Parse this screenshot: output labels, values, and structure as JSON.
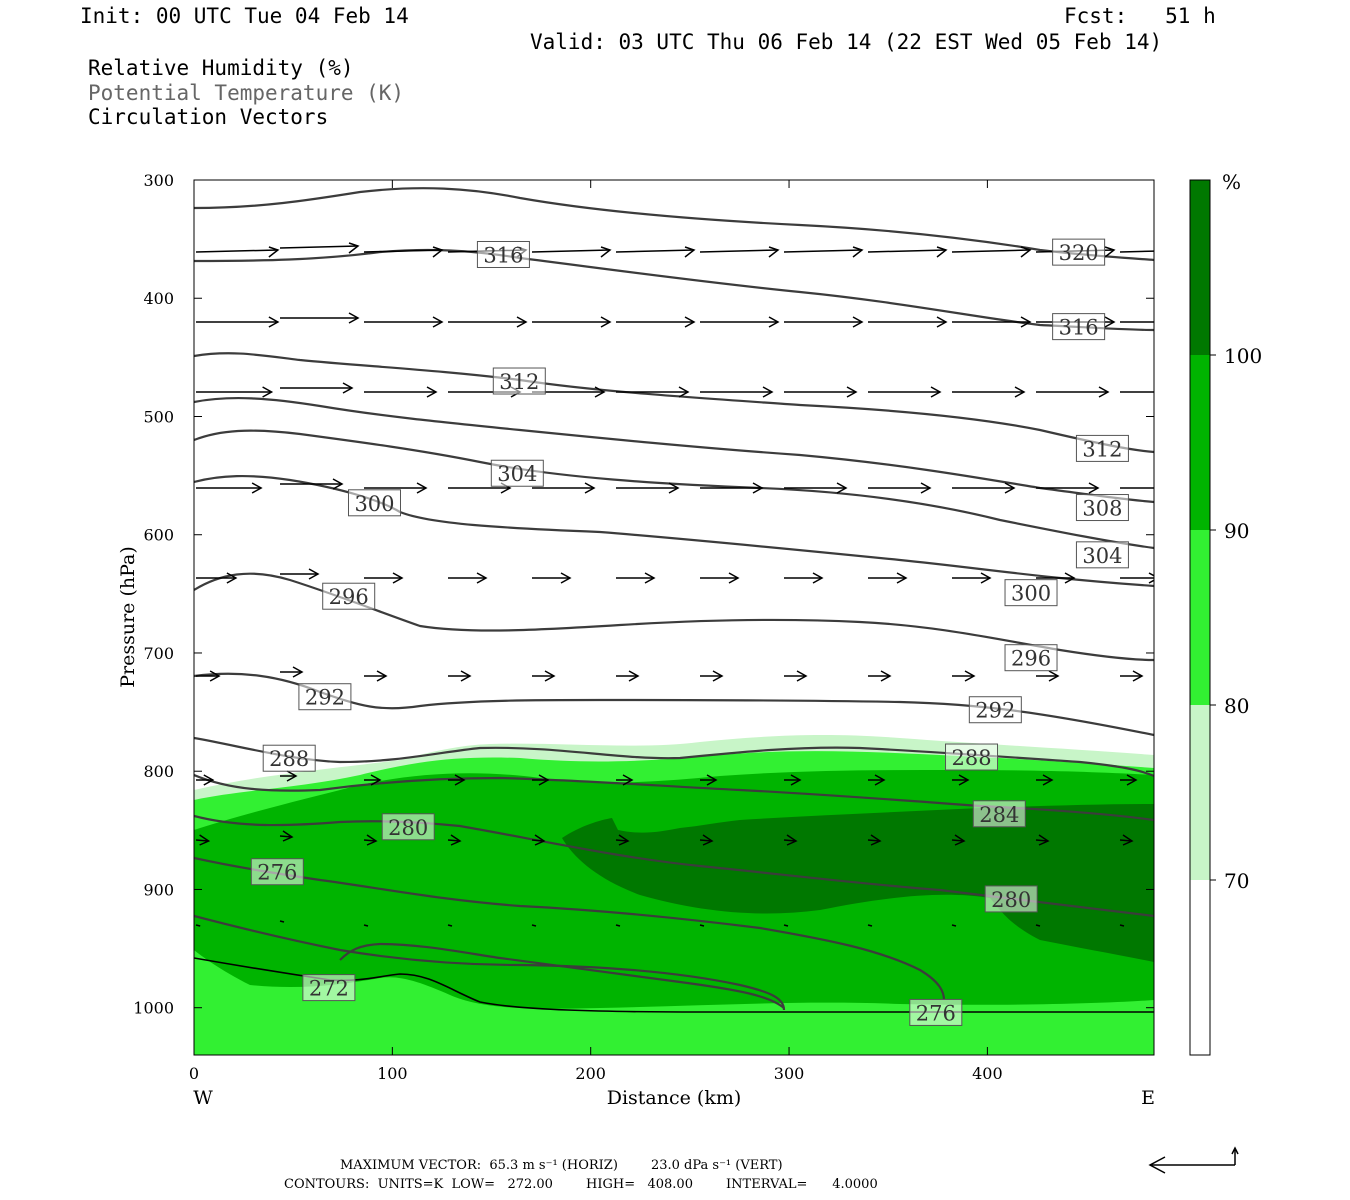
{
  "header": {
    "init": "Init: 00 UTC Tue 04 Feb 14",
    "fcst": "Fcst:   51 h",
    "valid": "Valid: 03 UTC Thu 06 Feb 14 (22 EST Wed 05 Feb 14)",
    "field_rh": "Relative Humidity (%)",
    "field_theta": "Potential Temperature (K)",
    "field_vectors": "Circulation Vectors"
  },
  "colors": {
    "rh_70_80": "#c8f5c8",
    "rh_80_90": "#32f032",
    "rh_90_100": "#00b400",
    "rh_100": "#007800",
    "contour": "#3c3c3c",
    "vector": "#000000"
  },
  "footer": {
    "max_vector": "MAXIMUM VECTOR:  65.3 m s⁻¹ (HORIZ)        23.0 dPa s⁻¹ (VERT)",
    "contours": "CONTOURS:  UNITS=K  LOW=   272.00        HIGH=   408.00        INTERVAL=      4.0000"
  },
  "chart_data": {
    "type": "cross-section contour",
    "xlabel": "Distance (km)",
    "ylabel": "Pressure (hPa)",
    "xlim": [
      0,
      484
    ],
    "ylim": [
      1040,
      300
    ],
    "x_ticks": [
      "0",
      "100",
      "200",
      "300",
      "400"
    ],
    "y_ticks": [
      "300",
      "400",
      "500",
      "600",
      "700",
      "800",
      "900",
      "1000"
    ],
    "x_end_labels": {
      "left": "W",
      "right": "E"
    },
    "colorbar": {
      "unit": "%",
      "levels": [
        "70",
        "80",
        "90",
        "100"
      ]
    },
    "isentrope_labels": [
      {
        "value": "316",
        "x": 156,
        "p": 363
      },
      {
        "value": "320",
        "x": 446,
        "p": 361
      },
      {
        "value": "316",
        "x": 446,
        "p": 424
      },
      {
        "value": "312",
        "x": 164,
        "p": 470
      },
      {
        "value": "312",
        "x": 458,
        "p": 527
      },
      {
        "value": "304",
        "x": 163,
        "p": 548
      },
      {
        "value": "308",
        "x": 458,
        "p": 577
      },
      {
        "value": "300",
        "x": 91,
        "p": 573
      },
      {
        "value": "304",
        "x": 458,
        "p": 617
      },
      {
        "value": "296",
        "x": 78,
        "p": 652
      },
      {
        "value": "300",
        "x": 422,
        "p": 649
      },
      {
        "value": "296",
        "x": 422,
        "p": 704
      },
      {
        "value": "292",
        "x": 66,
        "p": 737
      },
      {
        "value": "292",
        "x": 404,
        "p": 748
      },
      {
        "value": "288",
        "x": 48,
        "p": 789
      },
      {
        "value": "288",
        "x": 392,
        "p": 788
      },
      {
        "value": "284",
        "x": 406,
        "p": 836
      },
      {
        "value": "280",
        "x": 108,
        "p": 847
      },
      {
        "value": "276",
        "x": 42,
        "p": 885
      },
      {
        "value": "280",
        "x": 412,
        "p": 908
      },
      {
        "value": "272",
        "x": 68,
        "p": 983
      },
      {
        "value": "276",
        "x": 374,
        "p": 1004
      }
    ]
  }
}
